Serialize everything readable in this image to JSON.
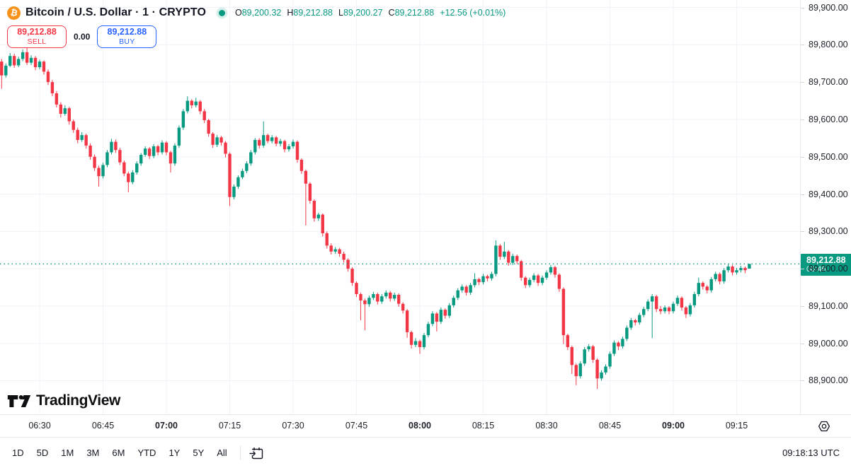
{
  "header": {
    "symbol_title": "Bitcoin / U.S. Dollar · 1 · CRYPTO",
    "ohlc_items": [
      {
        "label": "O",
        "value": "89,200.32"
      },
      {
        "label": "H",
        "value": "89,212.88"
      },
      {
        "label": "L",
        "value": "89,200.27"
      },
      {
        "label": "C",
        "value": "89,212.88"
      }
    ],
    "change": "+12.56 (+0.01%)",
    "bitcoin_glyph": "₿"
  },
  "trade_panel": {
    "sell_price": "89,212.88",
    "sell_label": "SELL",
    "spread": "0.00",
    "buy_price": "89,212.88",
    "buy_label": "BUY"
  },
  "price_axis": {
    "current_price_tag": {
      "price": "89,212.88",
      "countdown": "00:46"
    }
  },
  "toolbar": {
    "ranges": [
      "1D",
      "5D",
      "1M",
      "3M",
      "6M",
      "YTD",
      "1Y",
      "5Y",
      "All"
    ],
    "clock": "09:18:13 UTC"
  },
  "logo": {
    "text": "TradingView"
  },
  "colors": {
    "up": "#089981",
    "down": "#F23645",
    "buy_blue": "#2962FF",
    "bitcoin_orange": "#F7931A",
    "grid": "#F0F3FA",
    "text_dark": "#131722"
  },
  "chart_data": {
    "type": "candlestick",
    "title": "Bitcoin / U.S. Dollar",
    "interval": "1",
    "market": "CRYPTO",
    "legend_position": "none",
    "grid": true,
    "ylim": [
      88810,
      89920
    ],
    "y_ticks": [
      "88,900.00",
      "89,000.00",
      "89,100.00",
      "89,200.00",
      "89,300.00",
      "89,400.00",
      "89,500.00",
      "89,600.00",
      "89,700.00",
      "89,800.00",
      "89,900.00"
    ],
    "x_ticks": [
      "06:30",
      "06:45",
      "07:00",
      "07:15",
      "07:30",
      "07:45",
      "08:00",
      "08:15",
      "08:30",
      "08:45",
      "09:00",
      "09:15"
    ],
    "x_start": "06:21",
    "x_step_minutes": 1,
    "current_price": 89212.88,
    "candles": [
      [
        89755,
        89762,
        89682,
        89718
      ],
      [
        89718,
        89750,
        89712,
        89744
      ],
      [
        89744,
        89778,
        89740,
        89770
      ],
      [
        89770,
        89776,
        89738,
        89745
      ],
      [
        89745,
        89768,
        89740,
        89762
      ],
      [
        89762,
        89788,
        89756,
        89780
      ],
      [
        89780,
        89798,
        89746,
        89752
      ],
      [
        89752,
        89772,
        89746,
        89765
      ],
      [
        89765,
        89770,
        89732,
        89740
      ],
      [
        89740,
        89760,
        89734,
        89755
      ],
      [
        89755,
        89758,
        89720,
        89728
      ],
      [
        89728,
        89734,
        89692,
        89700
      ],
      [
        89700,
        89706,
        89662,
        89670
      ],
      [
        89670,
        89676,
        89632,
        89640
      ],
      [
        89640,
        89646,
        89605,
        89615
      ],
      [
        89615,
        89638,
        89610,
        89630
      ],
      [
        89630,
        89634,
        89586,
        89595
      ],
      [
        89595,
        89600,
        89564,
        89572
      ],
      [
        89572,
        89578,
        89536,
        89545
      ],
      [
        89545,
        89566,
        89540,
        89558
      ],
      [
        89558,
        89562,
        89522,
        89530
      ],
      [
        89530,
        89536,
        89492,
        89500
      ],
      [
        89500,
        89506,
        89462,
        89470
      ],
      [
        89470,
        89476,
        89420,
        89448
      ],
      [
        89448,
        89484,
        89442,
        89478
      ],
      [
        89478,
        89518,
        89472,
        89512
      ],
      [
        89512,
        89548,
        89506,
        89540
      ],
      [
        89540,
        89546,
        89510,
        89518
      ],
      [
        89518,
        89524,
        89478,
        89485
      ],
      [
        89485,
        89490,
        89448,
        89455
      ],
      [
        89455,
        89460,
        89405,
        89432
      ],
      [
        89432,
        89464,
        89426,
        89458
      ],
      [
        89458,
        89488,
        89452,
        89482
      ],
      [
        89482,
        89510,
        89476,
        89505
      ],
      [
        89505,
        89528,
        89500,
        89522
      ],
      [
        89522,
        89526,
        89494,
        89502
      ],
      [
        89502,
        89534,
        89496,
        89528
      ],
      [
        89528,
        89532,
        89504,
        89512
      ],
      [
        89512,
        89544,
        89506,
        89538
      ],
      [
        89538,
        89542,
        89504,
        89512
      ],
      [
        89512,
        89516,
        89458,
        89482
      ],
      [
        89482,
        89536,
        89476,
        89530
      ],
      [
        89530,
        89584,
        89524,
        89578
      ],
      [
        89578,
        89628,
        89572,
        89622
      ],
      [
        89622,
        89662,
        89616,
        89650
      ],
      [
        89650,
        89654,
        89630,
        89638
      ],
      [
        89638,
        89658,
        89632,
        89648
      ],
      [
        89648,
        89652,
        89614,
        89622
      ],
      [
        89622,
        89628,
        89590,
        89598
      ],
      [
        89598,
        89602,
        89554,
        89562
      ],
      [
        89562,
        89566,
        89524,
        89532
      ],
      [
        89532,
        89558,
        89526,
        89552
      ],
      [
        89552,
        89556,
        89530,
        89538
      ],
      [
        89538,
        89542,
        89498,
        89508
      ],
      [
        89508,
        89512,
        89368,
        89392
      ],
      [
        89392,
        89426,
        89386,
        89420
      ],
      [
        89420,
        89450,
        89414,
        89445
      ],
      [
        89445,
        89468,
        89440,
        89462
      ],
      [
        89462,
        89488,
        89456,
        89482
      ],
      [
        89482,
        89518,
        89476,
        89512
      ],
      [
        89512,
        89550,
        89506,
        89545
      ],
      [
        89545,
        89550,
        89522,
        89530
      ],
      [
        89530,
        89595,
        89524,
        89558
      ],
      [
        89558,
        89562,
        89536,
        89542
      ],
      [
        89542,
        89558,
        89536,
        89552
      ],
      [
        89552,
        89556,
        89528,
        89535
      ],
      [
        89535,
        89548,
        89528,
        89542
      ],
      [
        89542,
        89546,
        89512,
        89520
      ],
      [
        89520,
        89534,
        89514,
        89528
      ],
      [
        89528,
        89546,
        89522,
        89540
      ],
      [
        89540,
        89544,
        89484,
        89492
      ],
      [
        89492,
        89496,
        89454,
        89462
      ],
      [
        89462,
        89466,
        89316,
        89428
      ],
      [
        89428,
        89432,
        89374,
        89382
      ],
      [
        89382,
        89386,
        89326,
        89335
      ],
      [
        89335,
        89350,
        89328,
        89345
      ],
      [
        89345,
        89348,
        89286,
        89295
      ],
      [
        89295,
        89300,
        89254,
        89262
      ],
      [
        89262,
        89268,
        89238,
        89246
      ],
      [
        89246,
        89258,
        89240,
        89252
      ],
      [
        89252,
        89256,
        89232,
        89240
      ],
      [
        89240,
        89246,
        89216,
        89224
      ],
      [
        89224,
        89228,
        89192,
        89200
      ],
      [
        89200,
        89204,
        89154,
        89162
      ],
      [
        89162,
        89166,
        89124,
        89132
      ],
      [
        89132,
        89136,
        89062,
        89115
      ],
      [
        89115,
        89120,
        89035,
        89105
      ],
      [
        89105,
        89128,
        89098,
        89122
      ],
      [
        89122,
        89138,
        89116,
        89132
      ],
      [
        89132,
        89136,
        89104,
        89112
      ],
      [
        89112,
        89132,
        89106,
        89126
      ],
      [
        89126,
        89142,
        89120,
        89136
      ],
      [
        89136,
        89140,
        89112,
        89120
      ],
      [
        89120,
        89136,
        89114,
        89130
      ],
      [
        89130,
        89134,
        89098,
        89106
      ],
      [
        89106,
        89110,
        89080,
        89088
      ],
      [
        89088,
        89092,
        89015,
        89030
      ],
      [
        89030,
        89034,
        88986,
        88996
      ],
      [
        88996,
        89014,
        88990,
        89006
      ],
      [
        89006,
        89010,
        88972,
        88990
      ],
      [
        88990,
        89028,
        88984,
        89022
      ],
      [
        89022,
        89058,
        89016,
        89052
      ],
      [
        89052,
        89086,
        89046,
        89080
      ],
      [
        89080,
        89084,
        89032,
        89058
      ],
      [
        89058,
        89096,
        89052,
        89090
      ],
      [
        89090,
        89094,
        89066,
        89074
      ],
      [
        89074,
        89108,
        89068,
        89102
      ],
      [
        89102,
        89128,
        89096,
        89122
      ],
      [
        89122,
        89148,
        89116,
        89142
      ],
      [
        89142,
        89158,
        89136,
        89152
      ],
      [
        89152,
        89156,
        89128,
        89136
      ],
      [
        89136,
        89162,
        89130,
        89156
      ],
      [
        89156,
        89188,
        89150,
        89172
      ],
      [
        89172,
        89176,
        89156,
        89164
      ],
      [
        89164,
        89186,
        89158,
        89180
      ],
      [
        89180,
        89184,
        89166,
        89174
      ],
      [
        89174,
        89192,
        89168,
        89186
      ],
      [
        89186,
        89276,
        89180,
        89262
      ],
      [
        89262,
        89266,
        89224,
        89232
      ],
      [
        89232,
        89272,
        89226,
        89246
      ],
      [
        89246,
        89250,
        89208,
        89216
      ],
      [
        89216,
        89240,
        89210,
        89234
      ],
      [
        89234,
        89238,
        89212,
        89220
      ],
      [
        89220,
        89224,
        89168,
        89176
      ],
      [
        89176,
        89180,
        89148,
        89156
      ],
      [
        89156,
        89176,
        89150,
        89170
      ],
      [
        89170,
        89188,
        89164,
        89182
      ],
      [
        89182,
        89186,
        89154,
        89162
      ],
      [
        89162,
        89182,
        89156,
        89176
      ],
      [
        89176,
        89196,
        89170,
        89190
      ],
      [
        89190,
        89210,
        89184,
        89204
      ],
      [
        89204,
        89208,
        89176,
        89184
      ],
      [
        89184,
        89188,
        89138,
        89146
      ],
      [
        89146,
        89150,
        88998,
        89022
      ],
      [
        89022,
        89026,
        88982,
        88990
      ],
      [
        88990,
        88994,
        88918,
        88942
      ],
      [
        88942,
        88946,
        88888,
        88912
      ],
      [
        88912,
        88952,
        88906,
        88946
      ],
      [
        88946,
        88990,
        88940,
        88984
      ],
      [
        88984,
        88998,
        88978,
        88992
      ],
      [
        88992,
        88996,
        88948,
        88956
      ],
      [
        88956,
        88960,
        88878,
        88906
      ],
      [
        88906,
        88928,
        88900,
        88922
      ],
      [
        88922,
        88944,
        88916,
        88938
      ],
      [
        88938,
        88978,
        88932,
        88972
      ],
      [
        88972,
        89008,
        88966,
        89002
      ],
      [
        89002,
        89006,
        88982,
        88992
      ],
      [
        88992,
        89018,
        88986,
        89012
      ],
      [
        89012,
        89048,
        89006,
        89042
      ],
      [
        89042,
        89068,
        89036,
        89062
      ],
      [
        89062,
        89066,
        89048,
        89056
      ],
      [
        89056,
        89082,
        89050,
        89076
      ],
      [
        89076,
        89098,
        89070,
        89092
      ],
      [
        89092,
        89118,
        89086,
        89112
      ],
      [
        89112,
        89132,
        89014,
        89126
      ],
      [
        89126,
        89130,
        89084,
        89092
      ],
      [
        89092,
        89100,
        89078,
        89086
      ],
      [
        89086,
        89102,
        89080,
        89096
      ],
      [
        89096,
        89100,
        89078,
        89086
      ],
      [
        89086,
        89112,
        89080,
        89106
      ],
      [
        89106,
        89128,
        89100,
        89122
      ],
      [
        89122,
        89126,
        89088,
        89096
      ],
      [
        89096,
        89100,
        89068,
        89078
      ],
      [
        89078,
        89108,
        89072,
        89102
      ],
      [
        89102,
        89138,
        89096,
        89132
      ],
      [
        89132,
        89176,
        89126,
        89162
      ],
      [
        89162,
        89166,
        89144,
        89152
      ],
      [
        89152,
        89156,
        89134,
        89142
      ],
      [
        89142,
        89178,
        89136,
        89172
      ],
      [
        89172,
        89192,
        89166,
        89186
      ],
      [
        89186,
        89190,
        89158,
        89166
      ],
      [
        89166,
        89202,
        89160,
        89196
      ],
      [
        89196,
        89212,
        89190,
        89206
      ],
      [
        89206,
        89210,
        89182,
        89190
      ],
      [
        89190,
        89202,
        89184,
        89196
      ],
      [
        89196,
        89208,
        89190,
        89202
      ],
      [
        89202,
        89206,
        89188,
        89196
      ],
      [
        89200.32,
        89212.88,
        89200.27,
        89212.88
      ]
    ]
  }
}
